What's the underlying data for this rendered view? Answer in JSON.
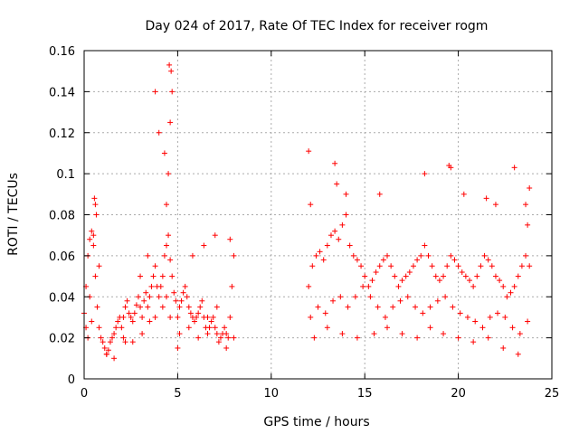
{
  "chart_data": {
    "type": "scatter",
    "title": "Day 024 of 2017, Rate Of TEC Index for receiver rogm",
    "xlabel": "GPS time / hours",
    "ylabel": "ROTI / TECUs",
    "xlim": [
      0,
      25
    ],
    "ylim": [
      0,
      0.16
    ],
    "xticks": [
      "0",
      "5",
      "10",
      "15",
      "20",
      "25"
    ],
    "yticks": [
      "0",
      "0.02",
      "0.04",
      "0.06",
      "0.08",
      "0.1",
      "0.12",
      "0.14",
      "0.16"
    ],
    "grid": true,
    "marker": "plus",
    "color": "#ff0000",
    "series": [
      {
        "x": [
          0.0,
          0.1,
          0.2,
          0.3,
          0.4,
          0.5,
          0.6,
          0.7,
          0.8,
          0.9,
          1.0,
          1.1,
          1.2,
          1.3,
          1.4,
          1.5,
          1.6,
          1.7,
          1.8,
          1.9,
          2.0,
          2.1,
          2.2,
          2.3,
          2.4,
          2.5,
          2.6,
          2.7,
          2.8,
          2.9,
          3.0,
          3.1,
          3.2,
          3.3,
          3.4,
          3.5,
          3.6,
          3.7,
          3.8,
          3.9,
          4.0,
          4.1,
          4.2,
          4.3,
          4.4,
          4.5,
          4.6,
          4.7,
          4.8,
          4.9,
          5.0,
          5.1,
          5.2,
          5.3,
          5.4,
          5.5,
          5.6,
          5.7,
          5.8,
          5.9,
          6.0,
          6.1,
          6.2,
          6.3,
          6.4,
          6.5,
          6.6,
          6.7,
          6.8,
          6.9,
          7.0,
          7.1,
          7.2,
          7.3,
          7.4,
          7.5,
          7.6,
          7.7,
          7.8,
          7.9,
          8.0,
          0.1,
          0.3,
          0.5,
          0.6,
          0.8,
          1.2,
          1.6,
          2.1,
          2.6,
          3.1,
          3.5,
          3.8,
          4.2,
          4.4,
          4.6,
          5.1,
          5.6,
          6.1,
          6.6,
          7.1,
          7.6,
          8.0,
          0.2,
          0.4,
          0.55,
          0.65,
          2.2,
          3.0,
          3.4,
          3.8,
          4.0,
          4.3,
          4.5,
          4.6,
          4.65,
          4.55,
          4.7,
          4.4,
          5.0,
          5.8,
          6.4,
          7.0,
          7.8
        ],
        "y": [
          0.032,
          0.045,
          0.06,
          0.068,
          0.072,
          0.065,
          0.05,
          0.035,
          0.025,
          0.02,
          0.018,
          0.015,
          0.012,
          0.014,
          0.018,
          0.02,
          0.022,
          0.025,
          0.028,
          0.03,
          0.025,
          0.03,
          0.035,
          0.038,
          0.032,
          0.03,
          0.028,
          0.032,
          0.036,
          0.04,
          0.035,
          0.03,
          0.038,
          0.042,
          0.035,
          0.04,
          0.045,
          0.05,
          0.055,
          0.045,
          0.04,
          0.045,
          0.05,
          0.06,
          0.065,
          0.07,
          0.058,
          0.05,
          0.042,
          0.038,
          0.03,
          0.035,
          0.038,
          0.042,
          0.045,
          0.04,
          0.035,
          0.032,
          0.03,
          0.028,
          0.03,
          0.032,
          0.035,
          0.038,
          0.03,
          0.025,
          0.022,
          0.025,
          0.028,
          0.03,
          0.025,
          0.022,
          0.018,
          0.02,
          0.022,
          0.025,
          0.022,
          0.02,
          0.03,
          0.045,
          0.06,
          0.025,
          0.04,
          0.07,
          0.085,
          0.055,
          0.012,
          0.01,
          0.02,
          0.018,
          0.022,
          0.028,
          0.03,
          0.035,
          0.04,
          0.03,
          0.022,
          0.025,
          0.02,
          0.03,
          0.035,
          0.015,
          0.02,
          0.02,
          0.028,
          0.088,
          0.08,
          0.018,
          0.05,
          0.06,
          0.14,
          0.12,
          0.11,
          0.1,
          0.125,
          0.15,
          0.153,
          0.14,
          0.085,
          0.015,
          0.06,
          0.065,
          0.07,
          0.068
        ]
      },
      {
        "x": [
          12.0,
          12.2,
          12.4,
          12.6,
          12.8,
          13.0,
          13.2,
          13.4,
          13.6,
          13.8,
          14.0,
          14.2,
          14.4,
          14.6,
          14.8,
          15.0,
          15.2,
          15.4,
          15.6,
          15.8,
          16.0,
          16.2,
          16.4,
          16.6,
          16.8,
          17.0,
          17.2,
          17.4,
          17.6,
          17.8,
          18.0,
          18.2,
          18.4,
          18.6,
          18.8,
          19.0,
          19.2,
          19.4,
          19.6,
          19.8,
          20.0,
          20.2,
          20.4,
          20.6,
          20.8,
          21.0,
          21.2,
          21.4,
          21.6,
          21.8,
          22.0,
          22.2,
          22.4,
          22.6,
          22.8,
          23.0,
          23.2,
          23.4,
          23.6,
          23.8,
          12.1,
          12.5,
          12.9,
          13.3,
          13.7,
          14.1,
          14.5,
          14.9,
          15.3,
          15.7,
          16.1,
          16.5,
          16.9,
          17.3,
          17.7,
          18.1,
          18.5,
          18.9,
          19.3,
          19.7,
          20.1,
          20.5,
          20.9,
          21.3,
          21.7,
          22.1,
          22.5,
          22.9,
          23.3,
          23.7,
          12.0,
          12.1,
          13.4,
          13.5,
          14.0,
          15.8,
          18.2,
          19.5,
          19.6,
          20.3,
          21.5,
          22.0,
          23.0,
          23.6,
          23.8,
          23.7,
          12.3,
          13.0,
          13.8,
          14.6,
          15.5,
          16.2,
          17.0,
          17.8,
          18.5,
          19.2,
          20.0,
          20.8,
          21.6,
          22.4,
          23.2
        ],
        "y": [
          0.045,
          0.055,
          0.06,
          0.062,
          0.058,
          0.065,
          0.07,
          0.072,
          0.068,
          0.075,
          0.08,
          0.065,
          0.06,
          0.058,
          0.055,
          0.05,
          0.045,
          0.048,
          0.052,
          0.055,
          0.058,
          0.06,
          0.055,
          0.05,
          0.045,
          0.048,
          0.05,
          0.052,
          0.055,
          0.058,
          0.06,
          0.065,
          0.06,
          0.055,
          0.05,
          0.048,
          0.05,
          0.055,
          0.06,
          0.058,
          0.055,
          0.052,
          0.05,
          0.048,
          0.045,
          0.05,
          0.055,
          0.06,
          0.058,
          0.055,
          0.05,
          0.048,
          0.045,
          0.04,
          0.042,
          0.045,
          0.05,
          0.055,
          0.06,
          0.055,
          0.03,
          0.035,
          0.032,
          0.038,
          0.04,
          0.035,
          0.04,
          0.045,
          0.04,
          0.035,
          0.03,
          0.035,
          0.038,
          0.04,
          0.035,
          0.032,
          0.035,
          0.038,
          0.04,
          0.035,
          0.032,
          0.03,
          0.028,
          0.025,
          0.03,
          0.032,
          0.03,
          0.025,
          0.022,
          0.028,
          0.111,
          0.085,
          0.105,
          0.095,
          0.09,
          0.09,
          0.1,
          0.104,
          0.103,
          0.09,
          0.088,
          0.085,
          0.103,
          0.085,
          0.093,
          0.075,
          0.02,
          0.025,
          0.022,
          0.02,
          0.022,
          0.025,
          0.022,
          0.02,
          0.025,
          0.022,
          0.02,
          0.018,
          0.02,
          0.015,
          0.012
        ]
      }
    ]
  }
}
